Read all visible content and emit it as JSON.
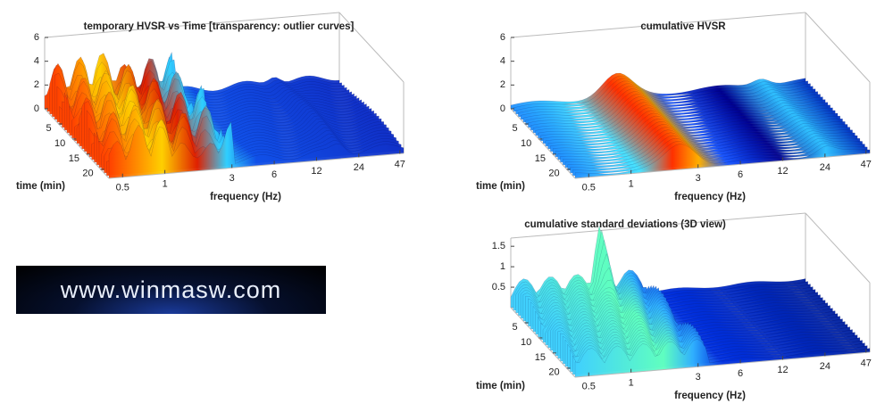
{
  "chart_data": [
    {
      "type": "surface",
      "title": "temporary HVSR vs Time [transparency: outlier curves]",
      "xlabel": "frequency (Hz)",
      "ylabel": "time (min)",
      "xscale": "log",
      "xlim": [
        0.4,
        50
      ],
      "xticks": [
        0.5,
        1,
        3,
        6,
        12,
        24,
        47
      ],
      "ylim": [
        0,
        23
      ],
      "yticks": [
        5,
        10,
        15,
        20
      ],
      "zlim": [
        0,
        6
      ],
      "zticks": [
        0,
        2,
        4,
        6
      ]
    },
    {
      "type": "surface",
      "title": "cumulative HVSR",
      "xlabel": "frequency (Hz)",
      "ylabel": "time (min)",
      "xscale": "log",
      "xlim": [
        0.4,
        50
      ],
      "xticks": [
        0.5,
        1,
        3,
        6,
        12,
        24,
        47
      ],
      "ylim": [
        0,
        23
      ],
      "yticks": [
        5,
        10,
        15,
        20
      ],
      "zlim": [
        0,
        6
      ],
      "zticks": [
        0,
        2,
        4,
        6
      ]
    },
    {
      "type": "surface",
      "title": "cumulative standard deviations (3D view)",
      "xlabel": "frequency (Hz)",
      "ylabel": "time (min)",
      "xscale": "log",
      "xlim": [
        0.4,
        50
      ],
      "xticks": [
        0.5,
        1,
        3,
        6,
        12,
        24,
        47
      ],
      "ylim": [
        0,
        23
      ],
      "yticks": [
        5,
        10,
        15,
        20
      ],
      "zlim": [
        0,
        1.7
      ],
      "zticks": [
        0.5,
        1,
        1.5
      ]
    }
  ],
  "logo": {
    "text": "www.winmasw.com"
  }
}
